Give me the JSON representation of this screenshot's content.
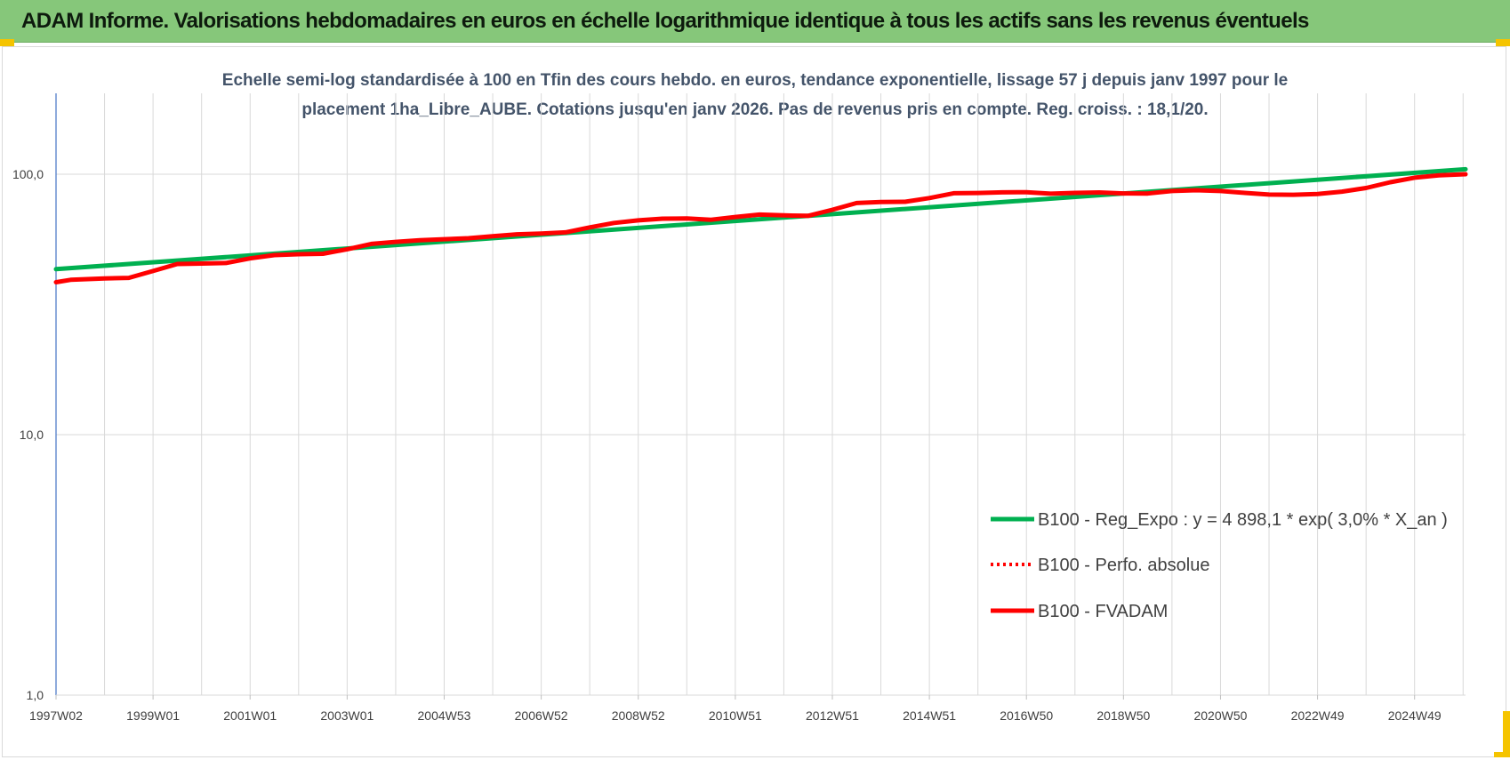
{
  "header": {
    "title": "ADAM Informe. Valorisations hebdomadaires en euros en échelle logarithmique identique à tous les actifs sans les revenus éventuels"
  },
  "colors": {
    "header_bg": "#86c77a",
    "trend": "#00b050",
    "series": "#ff0000",
    "subtitle": "#44546a",
    "grid": "#d9d9d9",
    "corner_marks": "#f5c400"
  },
  "chart_data": {
    "type": "line",
    "subtitle_lines": [
      "Echelle semi-log standardisée à 100 en Tfin des cours hebdo. en euros, tendance exponentielle, lissage 57 j depuis janv 1997 pour le",
      "placement 1ha_Libre_AUBE. Cotations jusqu'en janv 2026. Pas de revenus pris en compte. Reg. croiss. : 18,1/20."
    ],
    "y_scale": "log",
    "ylim": [
      1,
      200
    ],
    "y_ticks": [
      {
        "value": 1,
        "label": "1,0"
      },
      {
        "value": 10,
        "label": "10,0"
      },
      {
        "value": 100,
        "label": "100,0"
      }
    ],
    "xlim": [
      1997.0,
      2026.05
    ],
    "x_ticks": [
      {
        "value": 1997.0,
        "label": "1997W02"
      },
      {
        "value": 1999.0,
        "label": "1999W01"
      },
      {
        "value": 2001.0,
        "label": "2001W01"
      },
      {
        "value": 2003.0,
        "label": "2003W01"
      },
      {
        "value": 2005.0,
        "label": "2004W53"
      },
      {
        "value": 2007.0,
        "label": "2006W52"
      },
      {
        "value": 2009.0,
        "label": "2008W52"
      },
      {
        "value": 2011.0,
        "label": "2010W51"
      },
      {
        "value": 2013.0,
        "label": "2012W51"
      },
      {
        "value": 2015.0,
        "label": "2014W51"
      },
      {
        "value": 2017.0,
        "label": "2016W50"
      },
      {
        "value": 2019.0,
        "label": "2018W50"
      },
      {
        "value": 2021.0,
        "label": "2020W50"
      },
      {
        "value": 2023.0,
        "label": "2022W49"
      },
      {
        "value": 2025.0,
        "label": "2024W49"
      }
    ],
    "grid": true,
    "legend_position": "bottom-right",
    "series": [
      {
        "name": "B100 - Reg_Expo : y = 4 898,1 * exp( 3,0% *  X_an )",
        "style": "solid-green",
        "x": [
          1997.0,
          2026.05
        ],
        "y": [
          43.2,
          104.5
        ]
      },
      {
        "name": "B100 - Perfo. absolue",
        "style": "dotted-red",
        "x": [],
        "y": []
      },
      {
        "name": "B100 - FVADAM",
        "style": "solid-red",
        "x": [
          1997.0,
          1997.3,
          1998.0,
          1998.5,
          1999.0,
          1999.5,
          2000.0,
          2000.5,
          2001.0,
          2001.5,
          2002.0,
          2002.5,
          2003.0,
          2003.5,
          2004.0,
          2004.5,
          2005.0,
          2005.5,
          2006.0,
          2006.5,
          2007.0,
          2007.5,
          2008.0,
          2008.5,
          2009.0,
          2009.5,
          2010.0,
          2010.5,
          2011.0,
          2011.5,
          2012.0,
          2012.5,
          2013.0,
          2013.5,
          2014.0,
          2014.5,
          2015.0,
          2015.5,
          2016.0,
          2016.5,
          2017.0,
          2017.5,
          2018.0,
          2018.5,
          2019.0,
          2019.5,
          2020.0,
          2020.5,
          2021.0,
          2021.5,
          2022.0,
          2022.5,
          2023.0,
          2023.5,
          2024.0,
          2024.5,
          2025.0,
          2025.5,
          2026.05
        ],
        "y": [
          38.5,
          39.3,
          39.8,
          40.0,
          42.5,
          45.2,
          45.4,
          45.6,
          47.5,
          48.9,
          49.3,
          49.5,
          51.5,
          54.0,
          55.0,
          55.8,
          56.3,
          56.8,
          57.8,
          58.8,
          59.2,
          59.8,
          62.5,
          65.0,
          66.5,
          67.5,
          67.6,
          66.9,
          68.5,
          70.0,
          69.5,
          69.2,
          73.0,
          77.5,
          78.2,
          78.4,
          81.0,
          84.5,
          84.7,
          85.2,
          85.3,
          84.2,
          84.8,
          85.1,
          84.4,
          84.3,
          86.2,
          86.8,
          86.2,
          84.8,
          83.5,
          83.4,
          84.0,
          85.7,
          88.5,
          93.2,
          97.0,
          99.0,
          100.0
        ]
      }
    ]
  }
}
